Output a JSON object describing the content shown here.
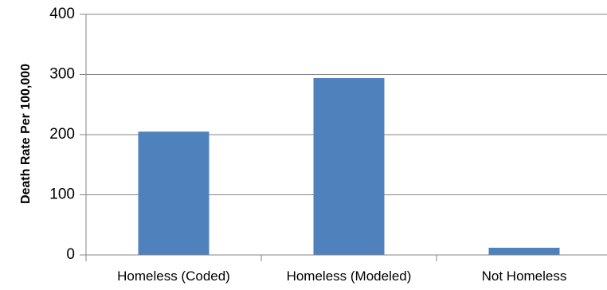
{
  "chart_data": {
    "type": "bar",
    "categories": [
      "Homeless (Coded)",
      "Homeless (Modeled)",
      "Not Homeless"
    ],
    "values": [
      205,
      294,
      12
    ],
    "title": "",
    "xlabel": "",
    "ylabel": "Death Rate Per 100,000",
    "ylim": [
      0,
      400
    ],
    "yticks": [
      0,
      100,
      200,
      300,
      400
    ],
    "grid": true,
    "legend": "none",
    "bar_color": "#4f81bd",
    "grid_color": "#868686"
  }
}
